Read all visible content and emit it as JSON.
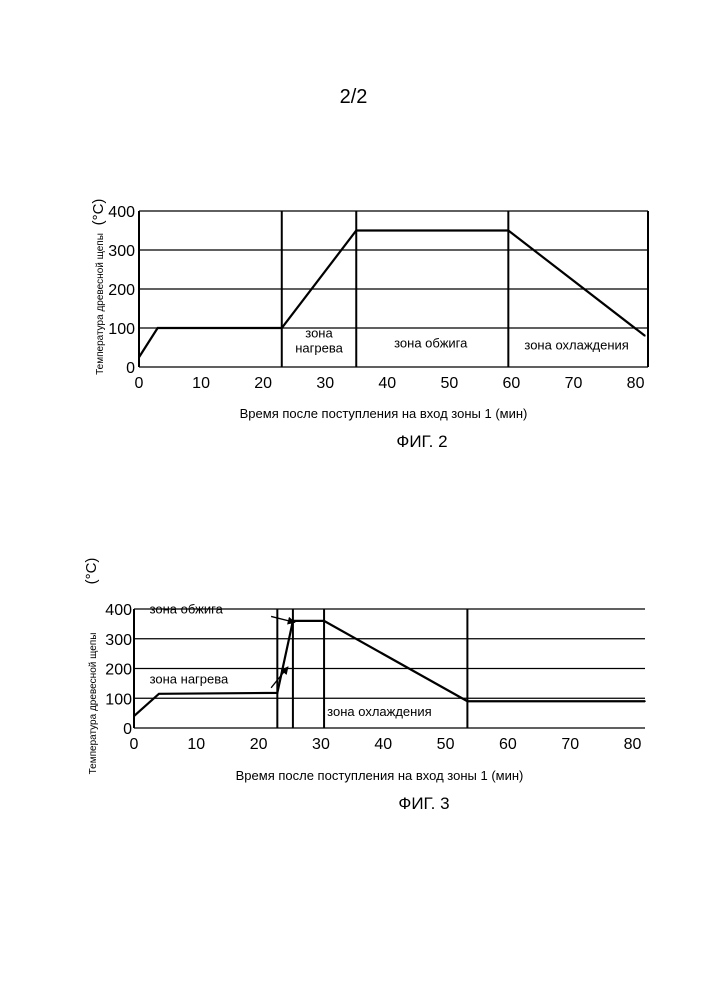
{
  "page_number": "2/2",
  "chart_data": [
    {
      "type": "line",
      "figure_label": "ФИГ. 2",
      "xlabel": "Время после поступления на вход зоны 1 (мин)",
      "ylabel": "Температура древесной щепы",
      "yunit": "(°C)",
      "xlim": [
        0,
        82
      ],
      "ylim": [
        0,
        400
      ],
      "x_ticks": [
        0,
        10,
        20,
        30,
        40,
        50,
        60,
        70,
        80
      ],
      "y_ticks": [
        0,
        100,
        200,
        300,
        400
      ],
      "gridlines_y": [
        100,
        200,
        300,
        400
      ],
      "zone_boundaries": [
        23,
        35,
        59.5,
        82
      ],
      "series": [
        {
          "x": [
            0,
            3,
            23,
            35,
            59.5,
            81.5
          ],
          "y": [
            25,
            100,
            100,
            350,
            350,
            80
          ]
        }
      ],
      "zone_labels": [
        {
          "lines": [
            "зона",
            "нагрева"
          ],
          "x": 29,
          "y": 55
        },
        {
          "lines": [
            "зона обжига"
          ],
          "x": 47,
          "y": 50
        },
        {
          "lines": [
            "зона охлаждения"
          ],
          "x": 70.5,
          "y": 45
        }
      ],
      "arrows": []
    },
    {
      "type": "line",
      "figure_label": "ФИГ. 3",
      "xlabel": "Время после поступления на вход зоны 1 (мин)",
      "ylabel": "Температура древесной щепы",
      "yunit": "(°C)",
      "xlim": [
        0,
        82
      ],
      "ylim": [
        0,
        400
      ],
      "x_ticks": [
        0,
        10,
        20,
        30,
        40,
        50,
        60,
        70,
        80
      ],
      "y_ticks": [
        0,
        100,
        200,
        300,
        400
      ],
      "gridlines_y": [
        100,
        200,
        300,
        400
      ],
      "zone_boundaries": [
        23,
        25.5,
        30.5,
        53.5
      ],
      "series": [
        {
          "x": [
            0,
            4,
            23,
            25.5,
            30.5,
            53.5,
            82
          ],
          "y": [
            40,
            115,
            118,
            360,
            360,
            90,
            90
          ]
        }
      ],
      "zone_labels": [
        {
          "lines": [
            "зона обжига"
          ],
          "x": 2.5,
          "y": 385,
          "anchor": "start"
        },
        {
          "lines": [
            "зона нагрева"
          ],
          "x": 2.5,
          "y": 150,
          "anchor": "start"
        },
        {
          "lines": [
            "зона охлаждения"
          ],
          "x": 31,
          "y": 40,
          "anchor": "start"
        }
      ],
      "arrows": [
        {
          "x1": 22,
          "y1": 375,
          "x2": 25.8,
          "y2": 355
        },
        {
          "x1": 22,
          "y1": 135,
          "x2": 24.7,
          "y2": 205
        }
      ]
    }
  ]
}
